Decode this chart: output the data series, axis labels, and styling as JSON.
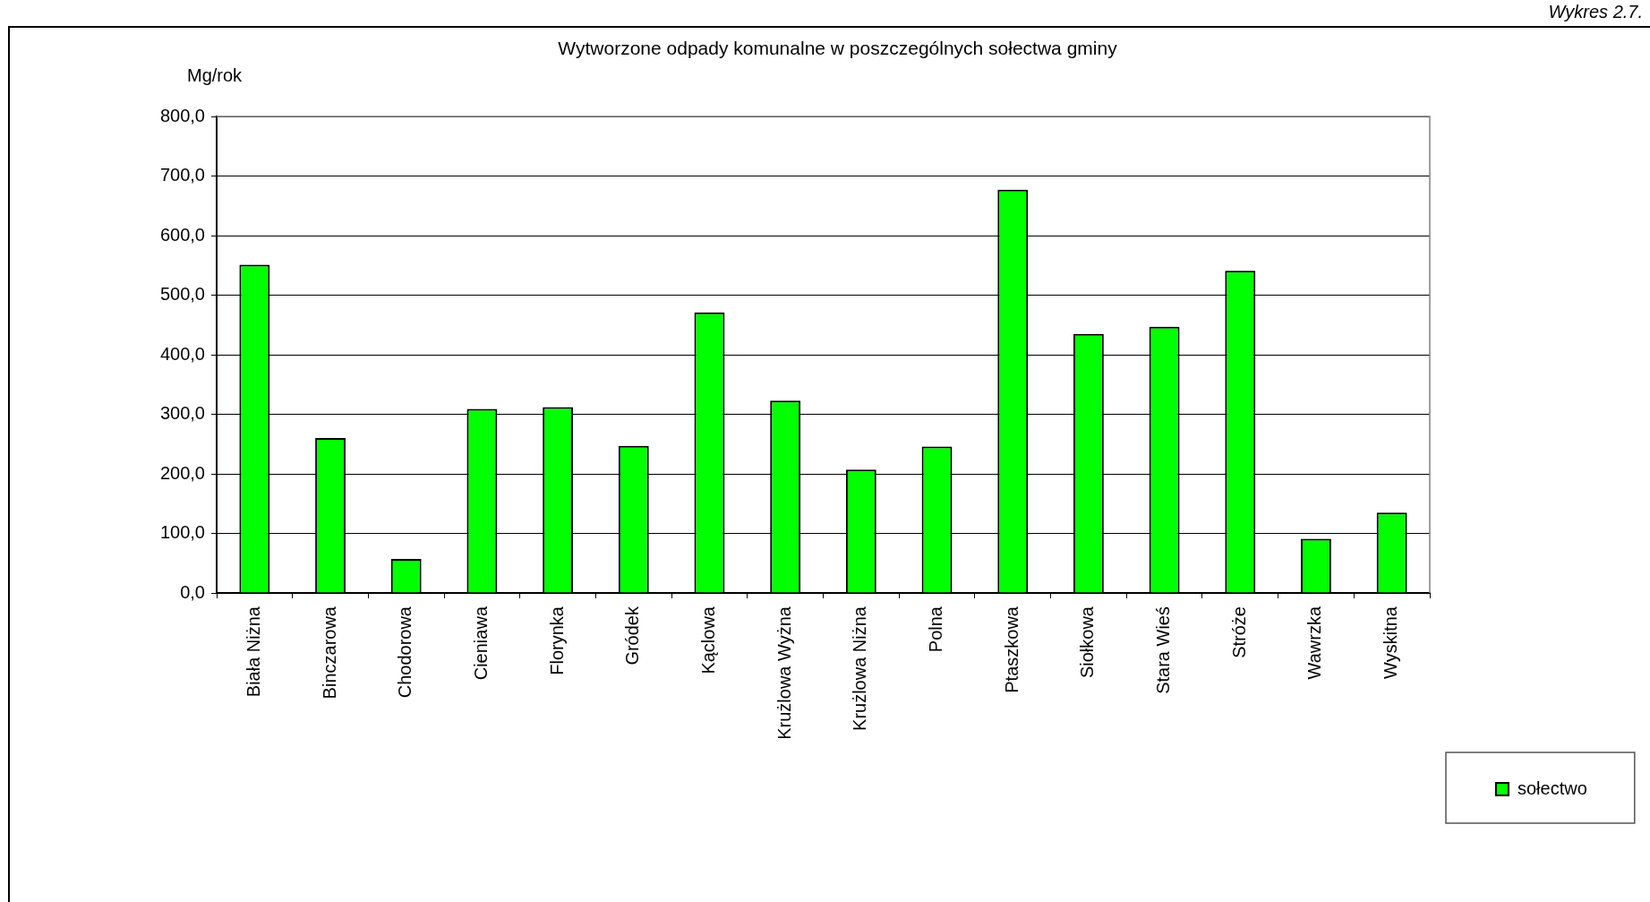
{
  "chart_data": {
    "type": "bar",
    "title": "Wytworzone odpady komunalne w poszczególnych sołectwa gminy",
    "ylabel": "Mg/rok",
    "annotations": [
      "Wykres 2.7."
    ],
    "categories": [
      "Biała Niżna",
      "Binczarowa",
      "Chodorowa",
      "Cieniawa",
      "Florynka",
      "Gródek",
      "Kąclowa",
      "Krużlowa Wyżna",
      "Krużlowa Niżna",
      "Polna",
      "Ptaszkowa",
      "Siołkowa",
      "Stara Wieś",
      "Stróże",
      "Wawrzka",
      "Wyskitna"
    ],
    "series": [
      {
        "name": "sołectwo",
        "color": "#00ff00",
        "values": [
          551,
          260,
          57,
          309,
          312,
          247,
          471,
          323,
          207,
          246,
          677,
          435,
          447,
          541,
          91,
          135
        ]
      }
    ],
    "ylim": [
      0,
      800
    ],
    "yticks": [
      {
        "value": 0,
        "label": "0,0"
      },
      {
        "value": 100,
        "label": "100,0"
      },
      {
        "value": 200,
        "label": "200,0"
      },
      {
        "value": 300,
        "label": "300,0"
      },
      {
        "value": 400,
        "label": "400,0"
      },
      {
        "value": 500,
        "label": "500,0"
      },
      {
        "value": 600,
        "label": "600,0"
      },
      {
        "value": 700,
        "label": "700,0"
      },
      {
        "value": 800,
        "label": "800,0"
      }
    ],
    "grid": "y",
    "legend": "bottom right"
  }
}
